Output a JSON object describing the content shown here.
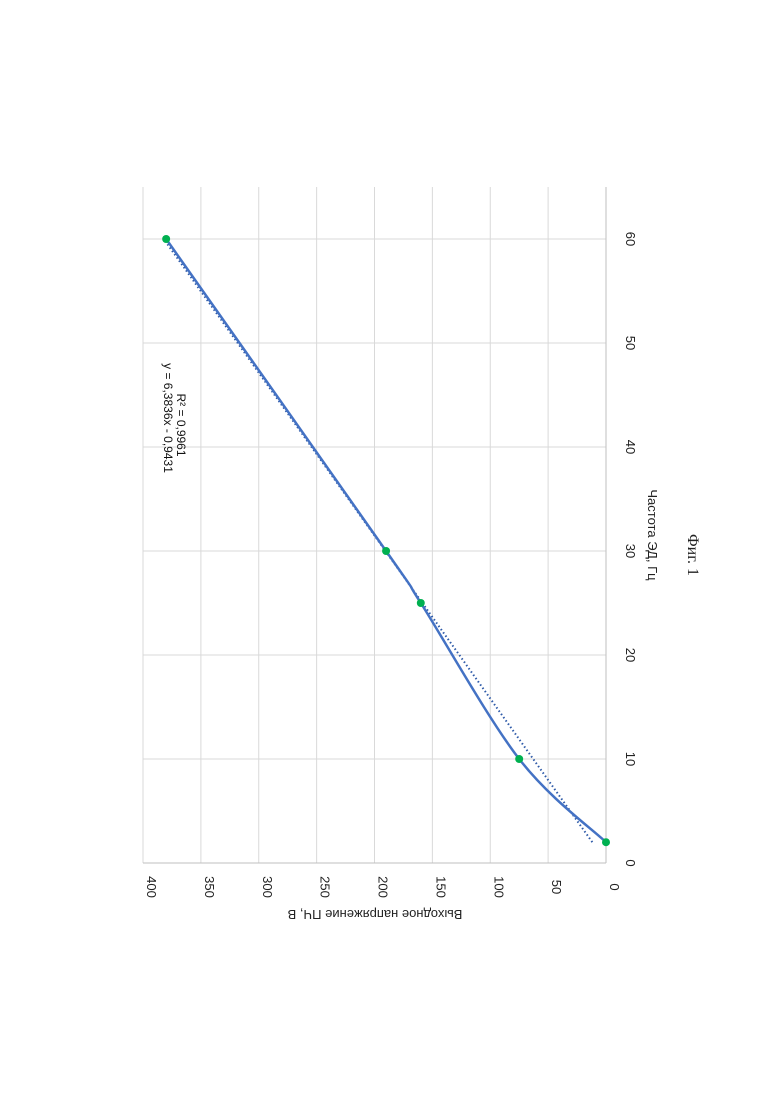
{
  "chart_data": {
    "type": "scatter",
    "x": [
      2,
      10,
      25,
      30,
      60
    ],
    "series": [
      {
        "values": [
          0,
          75,
          160,
          190,
          380
        ],
        "color": "#4472c4",
        "marker_color": "#00b050",
        "style": "smoothed-line-with-markers"
      }
    ],
    "trendline": {
      "type": "linear",
      "slope": 6.3836,
      "intercept": -0.9431,
      "x_range": [
        2,
        60
      ],
      "color": "#2e5aa8",
      "style": "dotted"
    },
    "equation_label": "y = 6,3836x - 0,9431",
    "r2_label": "R² = 0,9961",
    "xlabel": "Частота ЭД, Гц",
    "ylabel": "Выходное напряжение ПЧ, В",
    "xlim": [
      0,
      65
    ],
    "ylim": [
      0,
      400
    ],
    "xticks": [
      "0",
      "10",
      "20",
      "30",
      "40",
      "50",
      "60"
    ],
    "yticks": [
      "0",
      "50",
      "100",
      "150",
      "200",
      "250",
      "300",
      "350",
      "400"
    ],
    "grid": true,
    "orientation": "rotated 90° clockwise on page"
  },
  "caption": "Фиг. 1"
}
